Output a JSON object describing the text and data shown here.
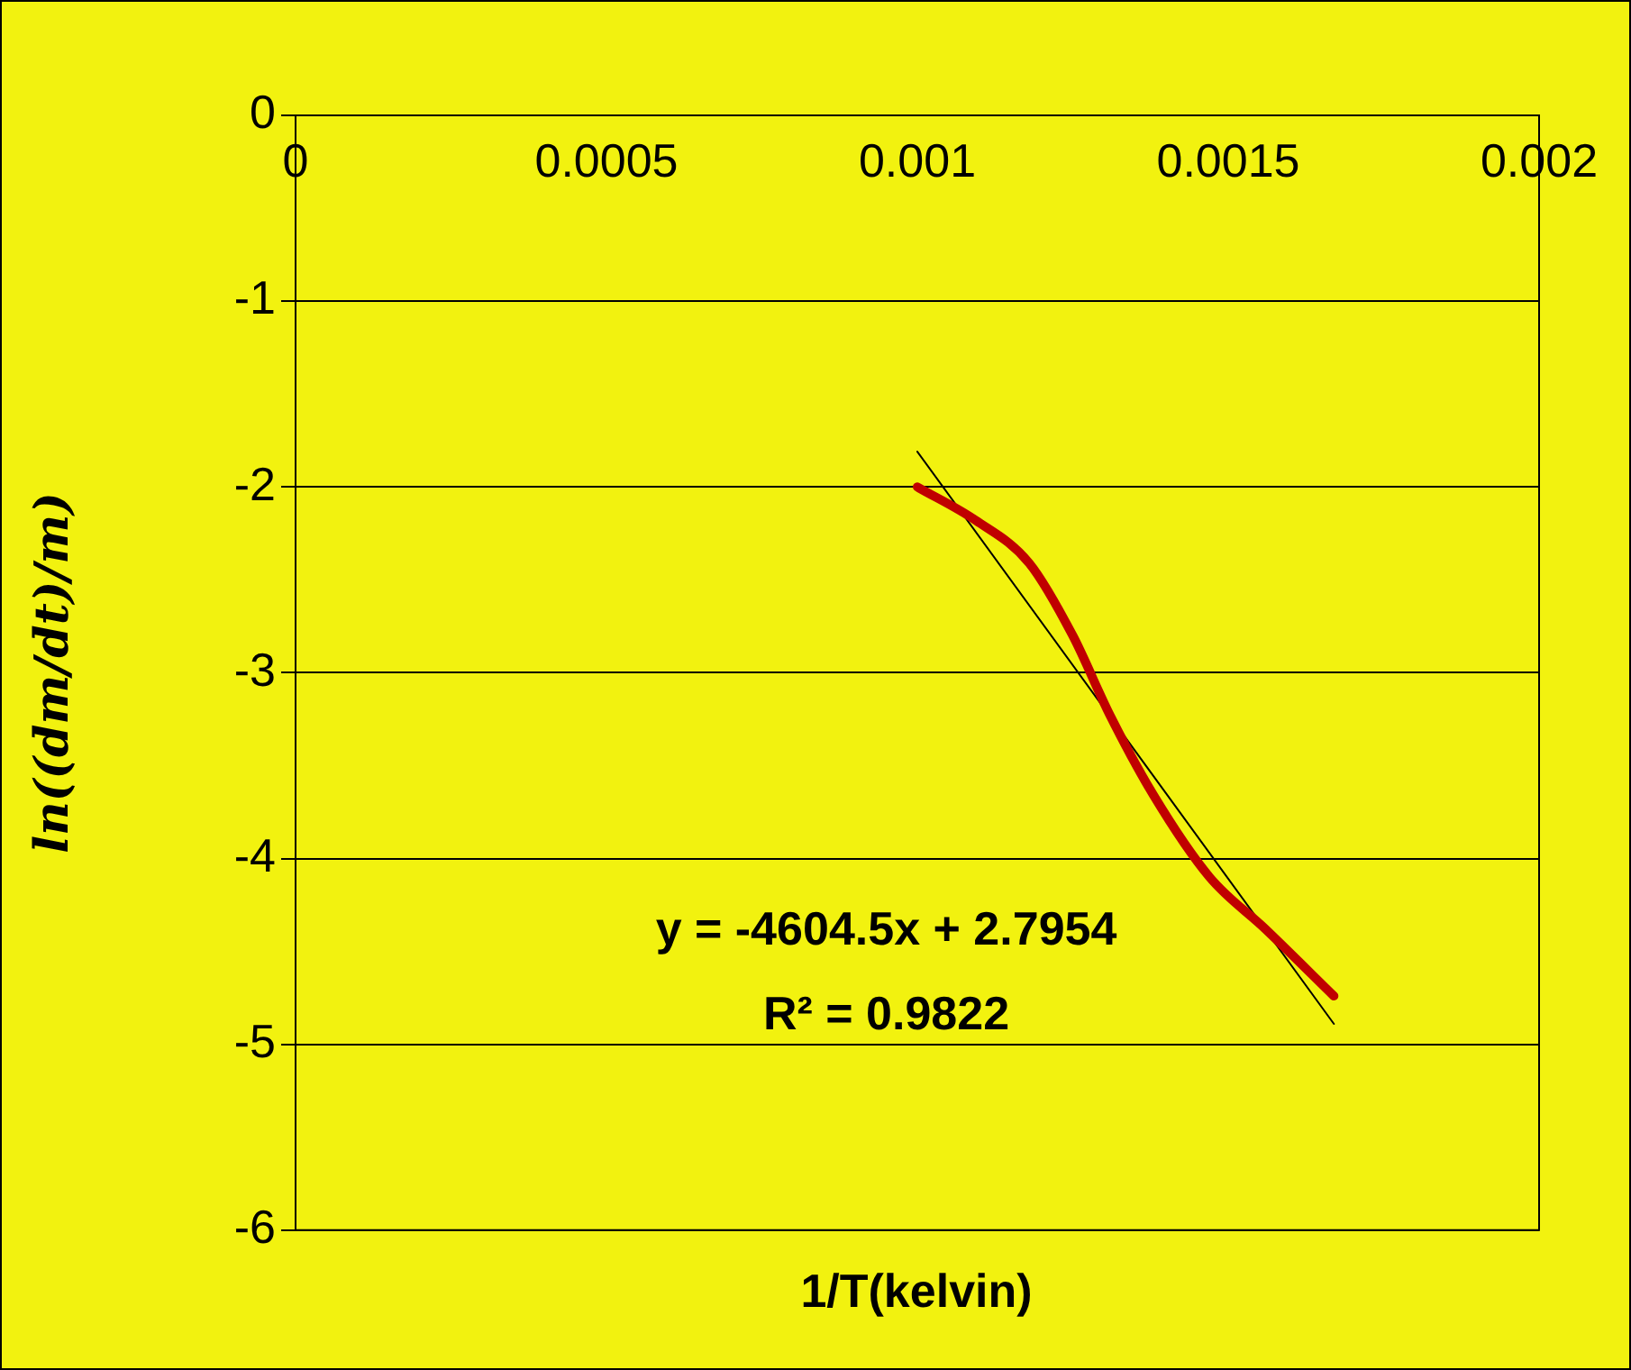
{
  "chart_data": {
    "type": "line",
    "xlabel": "1/T(kelvin)",
    "ylabel": "ln((dm/dt)/m)",
    "xlim": [
      0,
      0.002
    ],
    "xticks": [
      0,
      0.0005,
      0.001,
      0.0015,
      0.002
    ],
    "ylim": [
      -6,
      0
    ],
    "yticks": [
      -6,
      -5,
      -4,
      -3,
      -2,
      -1,
      0
    ],
    "grid": "y",
    "legend": false,
    "marker": "none",
    "line_style": "solid",
    "series": [
      {
        "color": "#c00000",
        "x": [
          0.001,
          0.001094,
          0.00118,
          0.00125,
          0.00131,
          0.00138,
          0.00147,
          0.00156,
          0.00167
        ],
        "values": [
          -2.0,
          -2.18,
          -2.41,
          -2.8,
          -3.23,
          -3.66,
          -4.1,
          -4.38,
          -4.74
        ]
      },
      {
        "type": "line",
        "color": "#000000",
        "x": [
          0.001,
          0.00167
        ],
        "values": [
          -1.81,
          -4.89
        ]
      }
    ],
    "annotations": [
      "y = -4604.5x + 2.7954",
      "R² = 0.9822"
    ]
  }
}
